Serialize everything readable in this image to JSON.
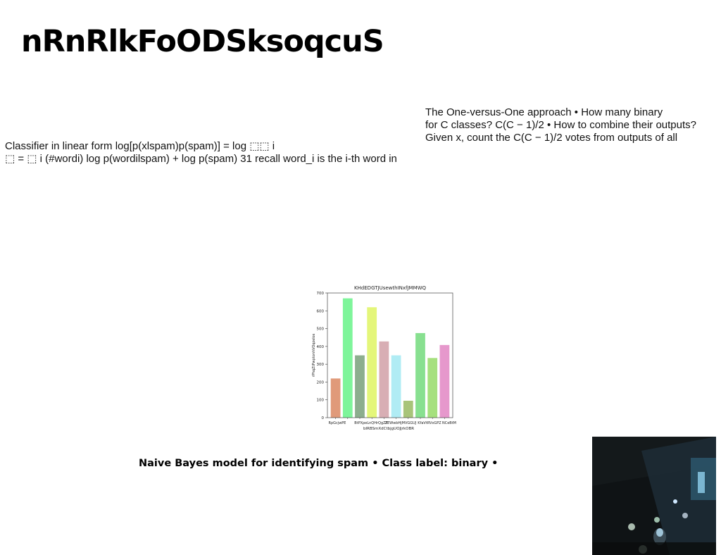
{
  "page": {
    "title": "nRnRlkFoODSksoqcuS",
    "left_text": "Classifier in linear form log[p(xlspam)p(spam)] = log ⬚⬚ i\n⬚ = ⬚ i (#wordi) log p(wordilspam) + log p(spam) 31 recall word_i is the i-th word in",
    "right_text": "The One-versus-One approach • How many binary\nfor C classes? C(C − 1)/2 • How to combine their outputs?\nGiven x, count the C(C − 1)/2 votes from outputs of all",
    "caption": "Naive Bayes model for identifying spam • Class label: binary •"
  },
  "photo": {
    "description": "dark-gallery-photo"
  },
  "chart_data": {
    "type": "bar",
    "title": "KHdEDGTJUsewthINxfJMMWQ",
    "xlabel": "bIRBSmXdCtbjgUOJjrkOBR",
    "ylabel": "rPhqZtPwptonhVOqzelos",
    "categories": [
      "RpGcjwPE",
      "BtPX",
      "peLnQH",
      "rQgZE",
      "ZEWw",
      "bHjMV",
      "GGUJ",
      "KfaVtR",
      "VxGPZ",
      "NCeBtM"
    ],
    "tick_labels_printed": [
      "RpGcjwPE",
      "BtPXpeLnQHrQgZE",
      "ZEWwbHjMVGGUJ",
      "KfaVtRVxGPZ",
      "NCeBtM"
    ],
    "values": [
      220,
      670,
      350,
      620,
      428,
      350,
      95,
      475,
      335,
      408
    ],
    "colors": [
      "#e09a7a",
      "#7ef59a",
      "#8cae8e",
      "#e4f67a",
      "#d8aeb4",
      "#b0ecf4",
      "#a8c47a",
      "#88e090",
      "#a6e07e",
      "#e698cc"
    ],
    "ylim": [
      0,
      700
    ],
    "yticks": [
      0,
      100,
      200,
      300,
      400,
      500,
      600,
      700
    ],
    "grid": false,
    "legend": "none"
  }
}
